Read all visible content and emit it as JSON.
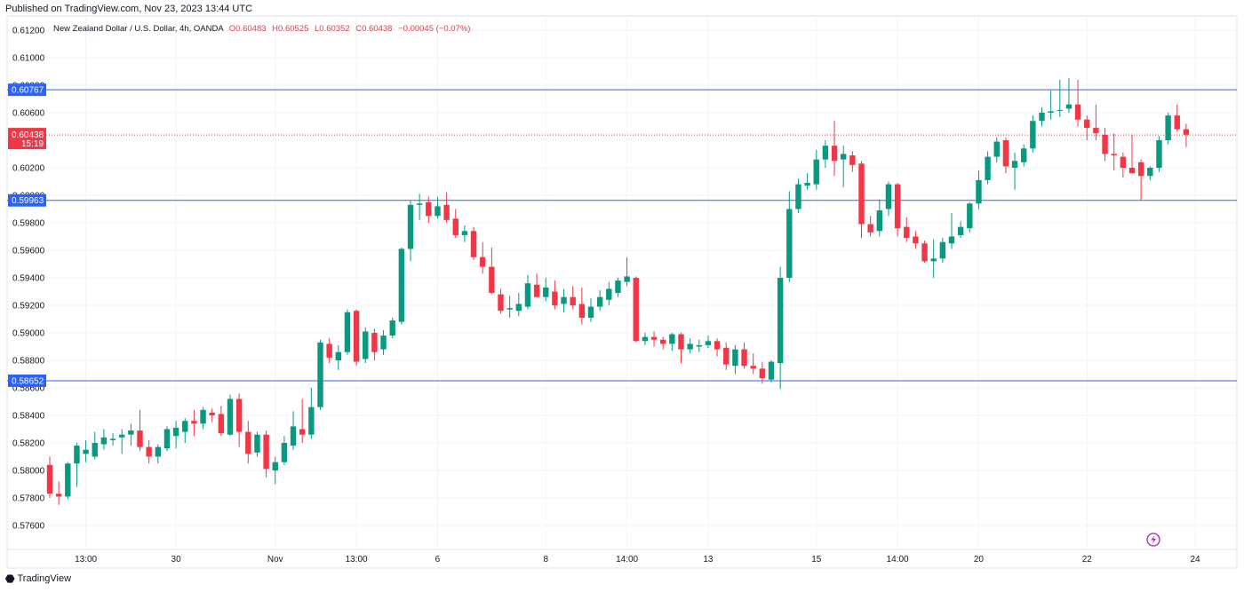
{
  "published": "Published on TradingView.com, Nov 23, 2023 13:44 UTC",
  "legend": {
    "symbol": "New Zealand Dollar / U.S. Dollar, 4h, OANDA",
    "open": "O0.60483",
    "high": "H0.60525",
    "low": "L0.60352",
    "close": "C0.60438",
    "change": "−0.00045 (−0.07%)"
  },
  "brand": "TradingView",
  "colors": {
    "up": "#089981",
    "down": "#f23645",
    "level": "#2962ff",
    "grid": "#f0f3fa",
    "price_tag": "#f23645"
  },
  "chart_data": {
    "type": "candlestick",
    "ylim": [
      0.5745,
      0.6127
    ],
    "y_ticks": [
      "0.61200",
      "0.61000",
      "0.60800",
      "0.60600",
      "0.60400",
      "0.60200",
      "0.60000",
      "0.59800",
      "0.59600",
      "0.59400",
      "0.59200",
      "0.59000",
      "0.58800",
      "0.58600",
      "0.58400",
      "0.58200",
      "0.58000",
      "0.57800",
      "0.57600"
    ],
    "x_ticks": [
      {
        "label": "13:00",
        "i": 4
      },
      {
        "label": "30",
        "i": 14
      },
      {
        "label": "Nov",
        "i": 25
      },
      {
        "label": "13:00",
        "i": 34
      },
      {
        "label": "6",
        "i": 43
      },
      {
        "label": "8",
        "i": 55
      },
      {
        "label": "14:00",
        "i": 64
      },
      {
        "label": "13",
        "i": 73
      },
      {
        "label": "15",
        "i": 85
      },
      {
        "label": "14:00",
        "i": 94
      },
      {
        "label": "20",
        "i": 103
      },
      {
        "label": "22",
        "i": 115
      },
      {
        "label": "24",
        "i": 127
      }
    ],
    "levels": [
      {
        "label": "0.60767",
        "value": 0.60767
      },
      {
        "label": "0.59963",
        "value": 0.59963
      },
      {
        "label": "0.58652",
        "value": 0.58652
      }
    ],
    "last_price": {
      "label": "0.60438",
      "countdown": "15:19",
      "value": 0.60438
    },
    "candles": [
      [
        0.5804,
        0.581,
        0.578,
        0.5783
      ],
      [
        0.5783,
        0.5792,
        0.5775,
        0.5781
      ],
      [
        0.5781,
        0.5806,
        0.5779,
        0.5805
      ],
      [
        0.5805,
        0.582,
        0.5788,
        0.5818
      ],
      [
        0.5812,
        0.5822,
        0.5806,
        0.5815
      ],
      [
        0.581,
        0.5828,
        0.5808,
        0.582
      ],
      [
        0.5819,
        0.583,
        0.5815,
        0.5824
      ],
      [
        0.5822,
        0.5827,
        0.5818,
        0.5823
      ],
      [
        0.5824,
        0.583,
        0.5812,
        0.5826
      ],
      [
        0.5826,
        0.5834,
        0.5818,
        0.5829
      ],
      [
        0.5829,
        0.5844,
        0.5814,
        0.5817
      ],
      [
        0.5817,
        0.5822,
        0.5805,
        0.581
      ],
      [
        0.581,
        0.5819,
        0.5805,
        0.5817
      ],
      [
        0.5816,
        0.5832,
        0.5814,
        0.583
      ],
      [
        0.5825,
        0.5836,
        0.5816,
        0.5831
      ],
      [
        0.5828,
        0.5838,
        0.582,
        0.5836
      ],
      [
        0.5836,
        0.5844,
        0.5825,
        0.5834
      ],
      [
        0.5834,
        0.5846,
        0.583,
        0.5844
      ],
      [
        0.5842,
        0.5845,
        0.5835,
        0.584
      ],
      [
        0.5841,
        0.5847,
        0.5825,
        0.5827
      ],
      [
        0.5826,
        0.5855,
        0.5825,
        0.5852
      ],
      [
        0.5852,
        0.5856,
        0.5817,
        0.5828
      ],
      [
        0.5828,
        0.5836,
        0.5805,
        0.5812
      ],
      [
        0.5813,
        0.5828,
        0.581,
        0.5826
      ],
      [
        0.5826,
        0.5829,
        0.5795,
        0.5801
      ],
      [
        0.58,
        0.581,
        0.579,
        0.5806
      ],
      [
        0.5806,
        0.5825,
        0.5804,
        0.582
      ],
      [
        0.5818,
        0.5843,
        0.5815,
        0.5832
      ],
      [
        0.583,
        0.5852,
        0.582,
        0.5826
      ],
      [
        0.5826,
        0.586,
        0.5823,
        0.5846
      ],
      [
        0.5846,
        0.5895,
        0.5844,
        0.5893
      ],
      [
        0.5892,
        0.5896,
        0.5878,
        0.5882
      ],
      [
        0.588,
        0.5891,
        0.5873,
        0.5886
      ],
      [
        0.5886,
        0.5917,
        0.5884,
        0.5915
      ],
      [
        0.5916,
        0.5917,
        0.5876,
        0.5879
      ],
      [
        0.5881,
        0.5904,
        0.5878,
        0.5901
      ],
      [
        0.59,
        0.5903,
        0.588,
        0.5886
      ],
      [
        0.5888,
        0.5902,
        0.5884,
        0.5898
      ],
      [
        0.5898,
        0.5911,
        0.5896,
        0.5909
      ],
      [
        0.5908,
        0.5962,
        0.5906,
        0.5961
      ],
      [
        0.5961,
        0.5996,
        0.5952,
        0.5993
      ],
      [
        0.5993,
        0.6001,
        0.5982,
        0.5994
      ],
      [
        0.5995,
        0.5999,
        0.598,
        0.5985
      ],
      [
        0.5985,
        0.5999,
        0.5983,
        0.5992
      ],
      [
        0.5993,
        0.6002,
        0.598,
        0.5982
      ],
      [
        0.5983,
        0.599,
        0.5969,
        0.5971
      ],
      [
        0.5971,
        0.5978,
        0.5966,
        0.5974
      ],
      [
        0.5974,
        0.5977,
        0.5953,
        0.5955
      ],
      [
        0.5955,
        0.5966,
        0.5943,
        0.5948
      ],
      [
        0.5948,
        0.5962,
        0.5928,
        0.5929
      ],
      [
        0.5928,
        0.5932,
        0.5914,
        0.5916
      ],
      [
        0.5917,
        0.5927,
        0.5911,
        0.5918
      ],
      [
        0.5916,
        0.5929,
        0.5912,
        0.5921
      ],
      [
        0.5919,
        0.5942,
        0.5917,
        0.5936
      ],
      [
        0.5935,
        0.5943,
        0.5929,
        0.5926
      ],
      [
        0.5926,
        0.594,
        0.5923,
        0.5933
      ],
      [
        0.593,
        0.5938,
        0.5917,
        0.592
      ],
      [
        0.5921,
        0.5932,
        0.5915,
        0.5926
      ],
      [
        0.5926,
        0.5934,
        0.5917,
        0.592
      ],
      [
        0.5921,
        0.5933,
        0.5906,
        0.5911
      ],
      [
        0.5911,
        0.5925,
        0.5908,
        0.5919
      ],
      [
        0.5919,
        0.5931,
        0.5916,
        0.5926
      ],
      [
        0.5924,
        0.5937,
        0.592,
        0.5932
      ],
      [
        0.5929,
        0.594,
        0.5926,
        0.5938
      ],
      [
        0.5937,
        0.5955,
        0.5934,
        0.5941
      ],
      [
        0.594,
        0.5941,
        0.5893,
        0.5894
      ],
      [
        0.5894,
        0.59,
        0.5891,
        0.5897
      ],
      [
        0.5897,
        0.5901,
        0.589,
        0.5895
      ],
      [
        0.5895,
        0.5897,
        0.5888,
        0.5892
      ],
      [
        0.5892,
        0.59,
        0.5887,
        0.5899
      ],
      [
        0.5899,
        0.59,
        0.5878,
        0.5888
      ],
      [
        0.5888,
        0.5896,
        0.5885,
        0.5892
      ],
      [
        0.589,
        0.5895,
        0.5886,
        0.5891
      ],
      [
        0.5891,
        0.5898,
        0.5889,
        0.5894
      ],
      [
        0.5894,
        0.5896,
        0.5883,
        0.5888
      ],
      [
        0.5889,
        0.5893,
        0.5873,
        0.5877
      ],
      [
        0.5876,
        0.5891,
        0.587,
        0.5888
      ],
      [
        0.5888,
        0.5893,
        0.5874,
        0.5876
      ],
      [
        0.5876,
        0.5885,
        0.587,
        0.5874
      ],
      [
        0.5874,
        0.5879,
        0.5863,
        0.5867
      ],
      [
        0.5866,
        0.588,
        0.5864,
        0.5879
      ],
      [
        0.5878,
        0.5948,
        0.5859,
        0.594
      ],
      [
        0.594,
        0.6003,
        0.5937,
        0.599
      ],
      [
        0.599,
        0.6012,
        0.5987,
        0.6008
      ],
      [
        0.6007,
        0.6016,
        0.6004,
        0.6009
      ],
      [
        0.6008,
        0.6033,
        0.6004,
        0.6026
      ],
      [
        0.6026,
        0.604,
        0.602,
        0.6036
      ],
      [
        0.6036,
        0.6054,
        0.6014,
        0.6025
      ],
      [
        0.6026,
        0.6036,
        0.6006,
        0.603
      ],
      [
        0.6029,
        0.6032,
        0.6017,
        0.6022
      ],
      [
        0.6023,
        0.6025,
        0.5969,
        0.5979
      ],
      [
        0.5979,
        0.5985,
        0.597,
        0.5973
      ],
      [
        0.5974,
        0.5997,
        0.597,
        0.5989
      ],
      [
        0.599,
        0.601,
        0.5985,
        0.6008
      ],
      [
        0.6008,
        0.6009,
        0.597,
        0.5976
      ],
      [
        0.5977,
        0.5984,
        0.5966,
        0.5969
      ],
      [
        0.597,
        0.5974,
        0.5961,
        0.5965
      ],
      [
        0.5965,
        0.5967,
        0.5951,
        0.5952
      ],
      [
        0.5952,
        0.5968,
        0.594,
        0.5954
      ],
      [
        0.5954,
        0.5969,
        0.5951,
        0.5966
      ],
      [
        0.5965,
        0.5987,
        0.5961,
        0.597
      ],
      [
        0.5971,
        0.5981,
        0.5969,
        0.5977
      ],
      [
        0.5976,
        0.5995,
        0.5973,
        0.5994
      ],
      [
        0.5994,
        0.6018,
        0.599,
        0.6011
      ],
      [
        0.6011,
        0.6032,
        0.6008,
        0.6028
      ],
      [
        0.6028,
        0.6042,
        0.6024,
        0.6039
      ],
      [
        0.604,
        0.6042,
        0.6016,
        0.6021
      ],
      [
        0.602,
        0.6031,
        0.6004,
        0.6025
      ],
      [
        0.6024,
        0.6037,
        0.6021,
        0.6034
      ],
      [
        0.6034,
        0.6058,
        0.6031,
        0.6054
      ],
      [
        0.6054,
        0.6064,
        0.605,
        0.606
      ],
      [
        0.606,
        0.6076,
        0.6055,
        0.6061
      ],
      [
        0.6062,
        0.6084,
        0.6057,
        0.6062
      ],
      [
        0.6063,
        0.6085,
        0.606,
        0.6066
      ],
      [
        0.6066,
        0.6084,
        0.605,
        0.6055
      ],
      [
        0.6055,
        0.6058,
        0.604,
        0.6049
      ],
      [
        0.6049,
        0.6066,
        0.604,
        0.6045
      ],
      [
        0.6044,
        0.6049,
        0.6025,
        0.603
      ],
      [
        0.603,
        0.6045,
        0.6018,
        0.6029
      ],
      [
        0.6028,
        0.6031,
        0.6013,
        0.602
      ],
      [
        0.602,
        0.6044,
        0.6016,
        0.6016
      ],
      [
        0.6024,
        0.6026,
        0.5996,
        0.6014
      ],
      [
        0.6014,
        0.6021,
        0.6011,
        0.602
      ],
      [
        0.602,
        0.6043,
        0.6017,
        0.604
      ],
      [
        0.604,
        0.606,
        0.6037,
        0.6058
      ],
      [
        0.6058,
        0.6066,
        0.6046,
        0.6048
      ],
      [
        0.6048,
        0.6052,
        0.6035,
        0.6044
      ]
    ]
  }
}
